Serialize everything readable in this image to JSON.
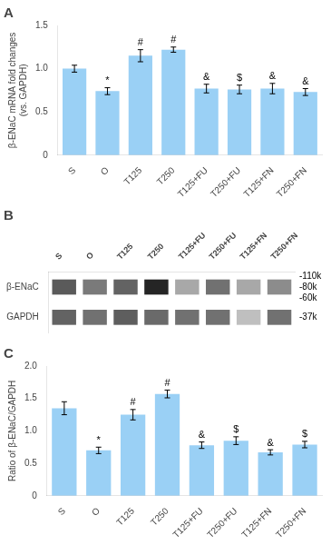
{
  "chart_data": [
    {
      "type": "bar",
      "title": "A",
      "categories": [
        "S",
        "O",
        "T125",
        "T250",
        "T125+FU",
        "T250+FU",
        "T125+FN",
        "T250+FN"
      ],
      "values": [
        1.0,
        0.74,
        1.15,
        1.22,
        0.77,
        0.76,
        0.77,
        0.73
      ],
      "errors": [
        0.04,
        0.04,
        0.07,
        0.03,
        0.05,
        0.05,
        0.06,
        0.04
      ],
      "annotations": [
        null,
        "*",
        "#",
        "#",
        "&",
        "$",
        "&",
        "&"
      ],
      "ylabel": "β-ENaC mRNA fold changes\n(vs. GAPDH)",
      "ylim": [
        0,
        1.5
      ],
      "yticks": [
        0,
        0.5,
        {
          "value": 1.0,
          "label": "1.0"
        },
        1.5
      ],
      "grid": false
    },
    {
      "type": "heatmap",
      "title": "B",
      "categories": [
        "S",
        "O",
        "T125",
        "T250",
        "T125+FU",
        "T250+FU",
        "T125+FN",
        "T250+FN"
      ],
      "rows": [
        "β-ENaC",
        "GAPDH"
      ],
      "cells": [
        [
          0.72,
          0.58,
          0.68,
          0.95,
          0.38,
          0.62,
          0.38,
          0.5
        ],
        [
          0.68,
          0.62,
          0.7,
          0.65,
          0.62,
          0.62,
          0.28,
          0.62
        ]
      ],
      "annotations": [
        {
          "text": "-110k",
          "row": "β-ENaC"
        },
        {
          "text": "-80k",
          "row": "β-ENaC"
        },
        {
          "text": "-60k",
          "row": "β-ENaC"
        },
        {
          "text": "-37k",
          "row": "GAPDH"
        }
      ],
      "grid": false
    },
    {
      "type": "bar",
      "title": "C",
      "categories": [
        "S",
        "O",
        "T125",
        "T250",
        "T125+FU",
        "T250+FU",
        "T125+FN",
        "T250+FN"
      ],
      "values": [
        1.35,
        0.7,
        1.25,
        1.57,
        0.78,
        0.85,
        0.67,
        0.79
      ],
      "errors": [
        0.1,
        0.05,
        0.08,
        0.06,
        0.05,
        0.06,
        0.04,
        0.05
      ],
      "annotations": [
        null,
        "*",
        "#",
        "#",
        "&",
        "$",
        "&",
        "$"
      ],
      "ylabel": "Ratio of β-ENaC/GAPDH",
      "ylim": [
        0,
        2.0
      ],
      "yticks": [
        0,
        0.5,
        {
          "value": 1.0,
          "label": "1.0"
        },
        1.5,
        {
          "value": 2.0,
          "label": "2.0"
        }
      ],
      "grid": false
    }
  ]
}
